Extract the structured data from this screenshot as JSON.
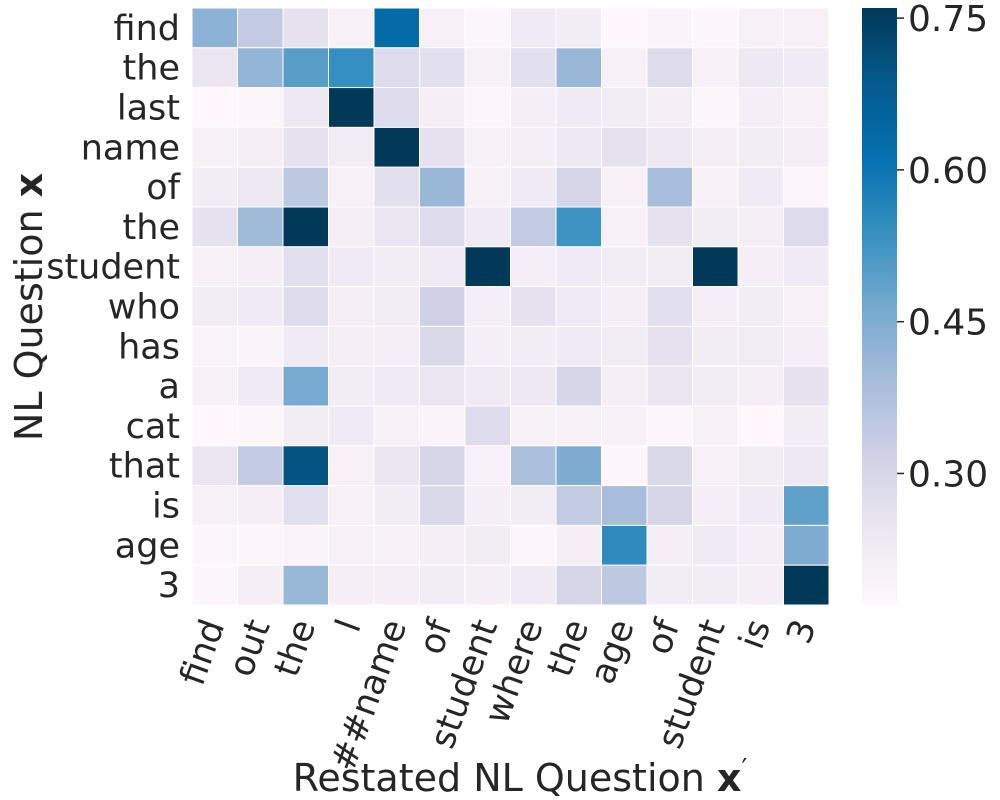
{
  "chart_data": {
    "type": "heatmap",
    "title": "",
    "ylabel_text": "NL Question ",
    "ylabel_bold": "x",
    "xlabel_text": "Restated NL Question ",
    "xlabel_bold": "x",
    "xlabel_prime": "′",
    "row_labels": [
      "find",
      "the",
      "last",
      "name",
      "of",
      "the",
      "student",
      "who",
      "has",
      "a",
      "cat",
      "that",
      "is",
      "age",
      "3"
    ],
    "col_labels": [
      "find",
      "out",
      "the",
      "l",
      "##name",
      "of",
      "student",
      "where",
      "the",
      "age",
      "of",
      "student",
      "is",
      "3"
    ],
    "values": [
      [
        0.43,
        0.34,
        0.26,
        0.2,
        0.63,
        0.2,
        0.18,
        0.23,
        0.22,
        0.17,
        0.19,
        0.18,
        0.2,
        0.2
      ],
      [
        0.25,
        0.42,
        0.5,
        0.54,
        0.28,
        0.27,
        0.2,
        0.27,
        0.41,
        0.2,
        0.28,
        0.2,
        0.24,
        0.23
      ],
      [
        0.17,
        0.18,
        0.24,
        0.76,
        0.28,
        0.21,
        0.18,
        0.21,
        0.23,
        0.22,
        0.21,
        0.18,
        0.21,
        0.2
      ],
      [
        0.2,
        0.21,
        0.26,
        0.22,
        0.76,
        0.26,
        0.2,
        0.21,
        0.24,
        0.26,
        0.24,
        0.21,
        0.22,
        0.21
      ],
      [
        0.22,
        0.24,
        0.35,
        0.2,
        0.27,
        0.41,
        0.2,
        0.23,
        0.3,
        0.2,
        0.39,
        0.2,
        0.23,
        0.18
      ],
      [
        0.26,
        0.4,
        0.76,
        0.21,
        0.25,
        0.28,
        0.23,
        0.34,
        0.53,
        0.2,
        0.26,
        0.22,
        0.21,
        0.28
      ],
      [
        0.2,
        0.21,
        0.27,
        0.23,
        0.22,
        0.23,
        0.76,
        0.21,
        0.23,
        0.22,
        0.22,
        0.76,
        0.21,
        0.23
      ],
      [
        0.22,
        0.23,
        0.28,
        0.21,
        0.22,
        0.32,
        0.21,
        0.26,
        0.23,
        0.21,
        0.27,
        0.21,
        0.22,
        0.2
      ],
      [
        0.19,
        0.19,
        0.23,
        0.21,
        0.21,
        0.29,
        0.21,
        0.22,
        0.23,
        0.22,
        0.26,
        0.22,
        0.22,
        0.21
      ],
      [
        0.2,
        0.23,
        0.46,
        0.22,
        0.23,
        0.25,
        0.23,
        0.24,
        0.3,
        0.21,
        0.25,
        0.22,
        0.21,
        0.26
      ],
      [
        0.17,
        0.18,
        0.22,
        0.23,
        0.2,
        0.19,
        0.28,
        0.2,
        0.2,
        0.2,
        0.18,
        0.2,
        0.17,
        0.22
      ],
      [
        0.25,
        0.34,
        0.7,
        0.2,
        0.25,
        0.3,
        0.2,
        0.38,
        0.45,
        0.18,
        0.29,
        0.2,
        0.22,
        0.24
      ],
      [
        0.2,
        0.21,
        0.27,
        0.2,
        0.22,
        0.29,
        0.21,
        0.22,
        0.34,
        0.39,
        0.3,
        0.21,
        0.23,
        0.49
      ],
      [
        0.18,
        0.18,
        0.19,
        0.2,
        0.2,
        0.21,
        0.22,
        0.18,
        0.21,
        0.55,
        0.21,
        0.23,
        0.21,
        0.45
      ],
      [
        0.18,
        0.21,
        0.41,
        0.21,
        0.21,
        0.22,
        0.21,
        0.23,
        0.3,
        0.35,
        0.22,
        0.22,
        0.21,
        0.76
      ]
    ],
    "vmin": 0.17,
    "vmax": 0.76,
    "colorbar_ticks": [
      0.3,
      0.45,
      0.6,
      0.75
    ],
    "colorbar_tick_labels": [
      "0.30",
      "0.45",
      "0.60",
      "0.75"
    ],
    "colormap": "PuBu",
    "colormap_stops": [
      "#fff7fb",
      "#ece7f2",
      "#d0d1e6",
      "#a6bddb",
      "#74a9cf",
      "#3690c0",
      "#0570b0",
      "#045a8d",
      "#023858"
    ],
    "cell_border_color": "#ffffff",
    "legend_placement": "right"
  }
}
